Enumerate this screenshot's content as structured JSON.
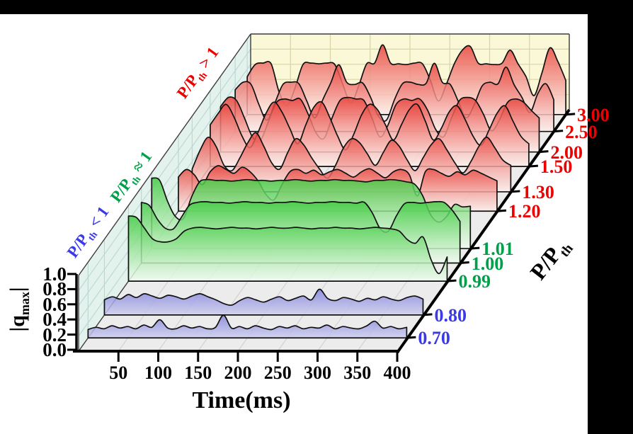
{
  "figure": {
    "bg": "#000000",
    "panel_bg": "#ffffff"
  },
  "labels": {
    "xlabel": "Time(ms)",
    "ylabel": {
      "base": "|q",
      "sub": "max",
      "end": "|"
    },
    "zlabel": {
      "base": "P/P",
      "sub": "th"
    },
    "legends": [
      {
        "base": "P/P",
        "sub": "th",
        "rest": " < 1",
        "color": "#3a3ae8",
        "group": "blue"
      },
      {
        "base": "P/P",
        "sub": "th",
        "rest": " ≈ 1",
        "color": "#00a04a",
        "group": "green"
      },
      {
        "base": "P/P",
        "sub": "th",
        "rest": " > 1",
        "color": "#ee0000",
        "group": "red"
      }
    ]
  },
  "chart_data": {
    "type": "area",
    "projection": "3d-waterfall",
    "title": "",
    "xlabel": "Time(ms)",
    "ylabel": "|q_max|",
    "zlabel": "P/P_th",
    "x_range": [
      0,
      400
    ],
    "x_step": 10,
    "x_ticks": [
      50,
      100,
      150,
      200,
      250,
      300,
      350,
      400
    ],
    "y_range": [
      0,
      1
    ],
    "y_ticks": [
      "0.0",
      "0.2",
      "0.4",
      "0.6",
      "0.8",
      "1.0"
    ],
    "grid": true,
    "legend_position": "along-left-wall",
    "colors": {
      "floor": "#ececec",
      "floor_grid": "#d2d2d2",
      "floor_series_line": "#ffffff",
      "left_wall": "#e4f2ee",
      "left_wall_grid": "#b9d6d0",
      "back_wall": "#fbf8d8",
      "back_wall_grid": "#d9d3a6",
      "axis": "#000000",
      "edge": "#3c3c3c",
      "curve_stroke": "#111111"
    },
    "groups": {
      "blue": {
        "top": "#8282da",
        "bottom": "#cdcdf0",
        "label": "#3a3ae8"
      },
      "green": {
        "top": "#42cb42",
        "bottom": "#f0fbf0",
        "label": "#00a04a"
      },
      "red": {
        "top": "#e8413a",
        "bottom": "#fdeeea",
        "label": "#ee0000"
      }
    },
    "series": [
      {
        "label": "0.70",
        "group": "blue",
        "z_frac": 0.055,
        "values": [
          0.11,
          0.14,
          0.12,
          0.16,
          0.13,
          0.15,
          0.12,
          0.17,
          0.14,
          0.24,
          0.13,
          0.12,
          0.16,
          0.13,
          0.15,
          0.12,
          0.14,
          0.3,
          0.13,
          0.15,
          0.12,
          0.16,
          0.13,
          0.11,
          0.15,
          0.13,
          0.16,
          0.12,
          0.14,
          0.13,
          0.17,
          0.12,
          0.15,
          0.13,
          0.12,
          0.16,
          0.22,
          0.13,
          0.15,
          0.12,
          0.14
        ]
      },
      {
        "label": "0.80",
        "group": "blue",
        "z_frac": 0.15,
        "values": [
          0.2,
          0.24,
          0.21,
          0.27,
          0.23,
          0.28,
          0.25,
          0.22,
          0.26,
          0.24,
          0.21,
          0.25,
          0.28,
          0.24,
          0.2,
          0.15,
          0.13,
          0.19,
          0.23,
          0.2,
          0.17,
          0.21,
          0.24,
          0.19,
          0.22,
          0.25,
          0.2,
          0.34,
          0.22,
          0.19,
          0.23,
          0.21,
          0.18,
          0.22,
          0.2,
          0.24,
          0.21,
          0.19,
          0.23,
          0.25,
          0.21
        ]
      },
      {
        "label": "0.99",
        "group": "green",
        "z_frac": 0.29,
        "values": [
          0.86,
          0.84,
          0.7,
          0.56,
          0.52,
          0.52,
          0.56,
          0.66,
          0.7,
          0.71,
          0.7,
          0.69,
          0.7,
          0.71,
          0.7,
          0.7,
          0.69,
          0.7,
          0.71,
          0.7,
          0.7,
          0.71,
          0.7,
          0.69,
          0.7,
          0.7,
          0.71,
          0.7,
          0.7,
          0.69,
          0.7,
          0.71,
          0.7,
          0.69,
          0.66,
          0.55,
          0.5,
          0.58,
          0.28,
          0.1,
          0.32
        ]
      },
      {
        "label": "1.00",
        "group": "green",
        "z_frac": 0.365,
        "values": [
          0.8,
          0.76,
          0.58,
          0.46,
          0.45,
          0.6,
          0.76,
          0.8,
          0.81,
          0.8,
          0.8,
          0.79,
          0.8,
          0.81,
          0.8,
          0.8,
          0.79,
          0.8,
          0.8,
          0.81,
          0.8,
          0.79,
          0.8,
          0.8,
          0.81,
          0.8,
          0.8,
          0.79,
          0.8,
          0.66,
          0.45,
          0.42,
          0.62,
          0.78,
          0.8,
          0.79,
          0.8,
          0.81,
          0.8,
          0.7,
          0.55
        ]
      },
      {
        "label": "1.01",
        "group": "green",
        "z_frac": 0.425,
        "values": [
          0.93,
          0.9,
          0.62,
          0.42,
          0.4,
          0.68,
          0.88,
          0.91,
          0.9,
          0.9,
          0.89,
          0.9,
          0.91,
          0.9,
          0.9,
          0.89,
          0.9,
          0.9,
          0.91,
          0.9,
          0.89,
          0.9,
          0.9,
          0.91,
          0.9,
          0.9,
          0.89,
          0.88,
          0.9,
          0.9,
          0.91,
          0.9,
          0.88,
          0.85,
          0.7,
          0.45,
          0.35,
          0.42,
          0.58,
          0.55,
          0.56
        ]
      },
      {
        "label": "1.20",
        "group": "red",
        "z_frac": 0.58,
        "values": [
          0.45,
          0.55,
          0.48,
          0.35,
          0.52,
          0.6,
          0.55,
          0.5,
          0.58,
          0.52,
          0.4,
          0.22,
          0.15,
          0.35,
          0.52,
          0.55,
          0.5,
          0.54,
          0.48,
          0.52,
          0.55,
          0.5,
          0.45,
          0.52,
          0.56,
          0.5,
          0.44,
          0.52,
          0.55,
          0.48,
          0.2,
          0.52,
          0.55,
          0.5,
          0.46,
          0.52,
          0.48,
          0.54,
          0.5,
          0.45,
          0.4
        ]
      },
      {
        "label": "1.30",
        "group": "red",
        "z_frac": 0.66,
        "values": [
          0.3,
          0.55,
          0.72,
          0.6,
          0.35,
          0.28,
          0.45,
          0.65,
          0.78,
          0.6,
          0.38,
          0.3,
          0.52,
          0.7,
          0.62,
          0.45,
          0.3,
          0.18,
          0.35,
          0.58,
          0.7,
          0.65,
          0.5,
          0.35,
          0.52,
          0.68,
          0.6,
          0.42,
          0.28,
          0.45,
          0.62,
          0.7,
          0.55,
          0.38,
          0.25,
          0.4,
          0.6,
          0.72,
          0.58,
          0.42,
          0.35
        ]
      },
      {
        "label": "1.50",
        "group": "red",
        "z_frac": 0.765,
        "values": [
          0.55,
          0.7,
          0.82,
          0.65,
          0.4,
          0.25,
          0.45,
          0.7,
          0.85,
          0.72,
          0.5,
          0.3,
          0.55,
          0.78,
          0.85,
          0.65,
          0.4,
          0.22,
          0.42,
          0.68,
          0.82,
          0.75,
          0.55,
          0.35,
          0.55,
          0.75,
          0.82,
          0.6,
          0.35,
          0.5,
          0.72,
          0.8,
          0.62,
          0.4,
          0.28,
          0.48,
          0.7,
          0.8,
          0.6,
          0.4,
          0.3
        ]
      },
      {
        "label": "2.00",
        "group": "red",
        "z_frac": 0.825,
        "values": [
          0.6,
          0.72,
          0.68,
          0.45,
          0.2,
          0.15,
          0.4,
          0.65,
          0.7,
          0.68,
          0.7,
          0.5,
          0.25,
          0.18,
          0.45,
          0.68,
          0.72,
          0.7,
          0.68,
          0.45,
          0.2,
          0.35,
          0.62,
          0.7,
          0.68,
          0.7,
          0.55,
          0.3,
          0.2,
          0.45,
          0.68,
          0.72,
          0.68,
          0.5,
          0.28,
          0.42,
          0.65,
          0.7,
          0.66,
          0.55,
          0.45
        ]
      },
      {
        "label": "2.50",
        "group": "red",
        "z_frac": 0.91,
        "values": [
          0.55,
          0.65,
          0.62,
          0.35,
          0.15,
          0.38,
          0.62,
          0.65,
          0.63,
          0.4,
          0.18,
          0.42,
          0.64,
          0.88,
          0.65,
          0.62,
          0.64,
          0.45,
          0.2,
          0.15,
          0.42,
          0.63,
          0.65,
          0.62,
          0.64,
          0.9,
          0.65,
          0.62,
          0.4,
          0.18,
          0.35,
          0.6,
          0.65,
          0.63,
          0.85,
          0.62,
          0.45,
          0.25,
          0.5,
          0.63,
          0.42
        ]
      },
      {
        "label": "3.00",
        "group": "red",
        "z_frac": 0.98,
        "values": [
          0.5,
          0.66,
          0.68,
          0.67,
          0.3,
          0.12,
          0.35,
          0.66,
          0.68,
          0.67,
          0.68,
          0.66,
          0.4,
          0.15,
          0.38,
          0.67,
          0.68,
          0.92,
          0.68,
          0.67,
          0.66,
          0.68,
          0.67,
          0.45,
          0.18,
          0.4,
          0.67,
          0.85,
          0.9,
          0.68,
          0.67,
          0.66,
          0.68,
          0.85,
          0.67,
          0.5,
          0.25,
          0.55,
          0.88,
          0.7,
          0.45
        ]
      }
    ]
  }
}
